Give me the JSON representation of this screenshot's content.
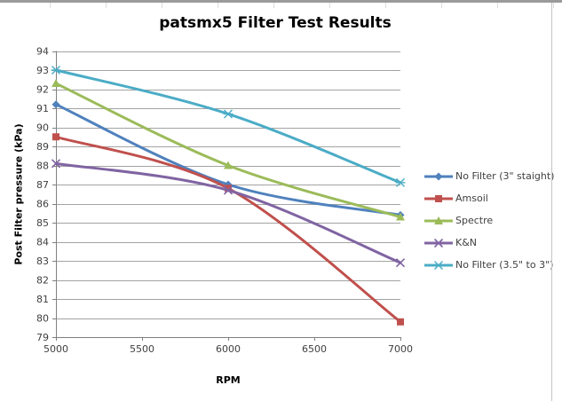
{
  "screen": {
    "background": "#FFFFFF",
    "top_strip_color": "#9A9A9A",
    "column_tick_color": "#DCDCDC",
    "frame_border_color": "#C6C6C6"
  },
  "chart_data": {
    "type": "line",
    "title": "patsmx5 Filter Test Results",
    "xlabel": "RPM",
    "ylabel": "Post Filter pressure (kPa)",
    "x": [
      5000,
      6000,
      7000
    ],
    "x_ticks": [
      5000,
      5500,
      6000,
      6500,
      7000
    ],
    "xlim": [
      5000,
      7000
    ],
    "ylim": [
      79,
      94
    ],
    "y_major_unit": 1,
    "grid": true,
    "legend_position": "right",
    "smoothed_lines": true,
    "series": [
      {
        "name": "No Filter (3\" staight)",
        "color": "#4F81BD",
        "marker": "diamond",
        "values": [
          91.2,
          87.0,
          85.4
        ]
      },
      {
        "name": "Amsoil",
        "color": "#C0504D",
        "marker": "square",
        "values": [
          89.5,
          86.8,
          79.8
        ]
      },
      {
        "name": "Spectre",
        "color": "#9BBB59",
        "marker": "triangle",
        "values": [
          92.3,
          88.0,
          85.3
        ]
      },
      {
        "name": "K&N",
        "color": "#8064A2",
        "marker": "x",
        "values": [
          88.1,
          86.7,
          82.9
        ]
      },
      {
        "name": "No Filter (3.5\" to 3\")",
        "color": "#4BACC6",
        "marker": "star",
        "values": [
          93.0,
          90.7,
          87.1
        ]
      }
    ],
    "style": {
      "gridline_color": "#A3A3A3",
      "axis_color": "#808080",
      "tick_label_color": "#3F3F3F",
      "legend_text_color": "#3F3F3F"
    }
  }
}
